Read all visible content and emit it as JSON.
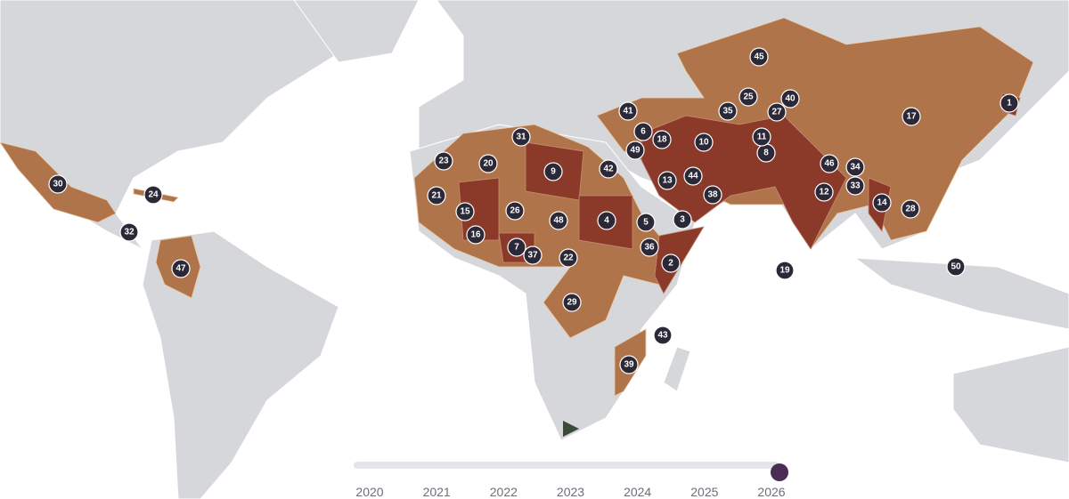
{
  "map": {
    "markers": [
      1,
      2,
      3,
      4,
      5,
      6,
      7,
      8,
      9,
      10,
      11,
      12,
      13,
      14,
      15,
      16,
      17,
      18,
      19,
      20,
      21,
      22,
      23,
      24,
      25,
      26,
      27,
      28,
      29,
      30,
      31,
      32,
      33,
      34,
      35,
      36,
      37,
      38,
      39,
      40,
      41,
      42,
      43,
      44,
      45,
      46,
      47,
      48,
      49,
      50
    ]
  },
  "timeline": {
    "years": [
      2020,
      2021,
      2022,
      2023,
      2024,
      2025,
      2026
    ]
  }
}
